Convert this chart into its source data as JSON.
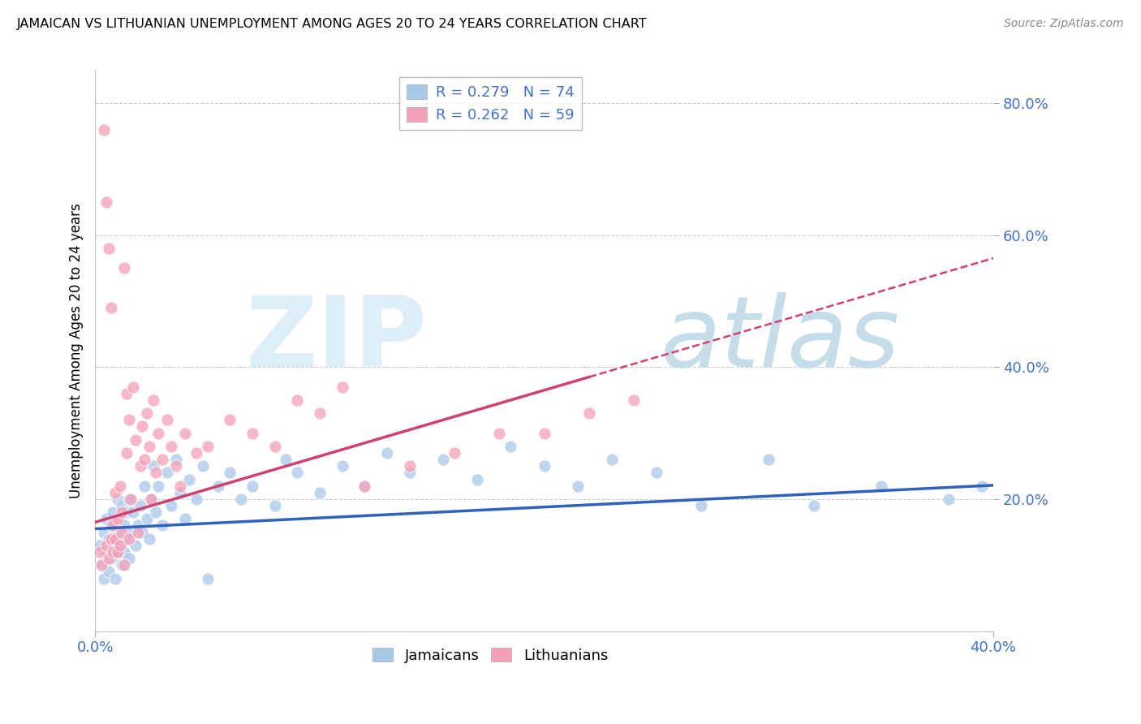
{
  "title": "JAMAICAN VS LITHUANIAN UNEMPLOYMENT AMONG AGES 20 TO 24 YEARS CORRELATION CHART",
  "source": "Source: ZipAtlas.com",
  "ylabel_text": "Unemployment Among Ages 20 to 24 years",
  "legend_entry1": "R = 0.279   N = 74",
  "legend_entry2": "R = 0.262   N = 59",
  "jamaicans_color": "#a8c8e8",
  "lithuanians_color": "#f4a0b8",
  "trend_blue": "#3060c0",
  "trend_pink": "#d04070",
  "xlim": [
    0.0,
    0.4
  ],
  "ylim": [
    0.0,
    0.85
  ],
  "ytick_vals": [
    0.2,
    0.4,
    0.6,
    0.8
  ],
  "ytick_labels": [
    "20.0%",
    "40.0%",
    "60.0%",
    "80.0%"
  ],
  "grid_color": "#cccccc",
  "background_color": "#ffffff",
  "watermark_zip_color": "#dde8f0",
  "watermark_atlas_color": "#c8dcea",
  "jamaicans_x": [
    0.002,
    0.003,
    0.004,
    0.004,
    0.005,
    0.005,
    0.006,
    0.006,
    0.007,
    0.007,
    0.008,
    0.008,
    0.009,
    0.009,
    0.01,
    0.01,
    0.011,
    0.011,
    0.012,
    0.012,
    0.013,
    0.013,
    0.014,
    0.014,
    0.015,
    0.015,
    0.016,
    0.017,
    0.018,
    0.019,
    0.02,
    0.021,
    0.022,
    0.023,
    0.024,
    0.025,
    0.026,
    0.027,
    0.028,
    0.03,
    0.032,
    0.034,
    0.036,
    0.038,
    0.04,
    0.042,
    0.045,
    0.048,
    0.05,
    0.055,
    0.06,
    0.065,
    0.07,
    0.08,
    0.085,
    0.09,
    0.1,
    0.11,
    0.12,
    0.13,
    0.14,
    0.155,
    0.17,
    0.185,
    0.2,
    0.215,
    0.23,
    0.25,
    0.27,
    0.3,
    0.32,
    0.35,
    0.38,
    0.395
  ],
  "jamaicans_y": [
    0.13,
    0.1,
    0.15,
    0.08,
    0.12,
    0.17,
    0.14,
    0.09,
    0.16,
    0.11,
    0.14,
    0.18,
    0.12,
    0.08,
    0.15,
    0.2,
    0.13,
    0.17,
    0.1,
    0.19,
    0.16,
    0.12,
    0.18,
    0.14,
    0.2,
    0.11,
    0.15,
    0.18,
    0.13,
    0.16,
    0.19,
    0.15,
    0.22,
    0.17,
    0.14,
    0.2,
    0.25,
    0.18,
    0.22,
    0.16,
    0.24,
    0.19,
    0.26,
    0.21,
    0.17,
    0.23,
    0.2,
    0.25,
    0.08,
    0.22,
    0.24,
    0.2,
    0.22,
    0.19,
    0.26,
    0.24,
    0.21,
    0.25,
    0.22,
    0.27,
    0.24,
    0.26,
    0.23,
    0.28,
    0.25,
    0.22,
    0.26,
    0.24,
    0.19,
    0.26,
    0.19,
    0.22,
    0.2,
    0.22
  ],
  "lithuanians_x": [
    0.002,
    0.003,
    0.004,
    0.005,
    0.005,
    0.006,
    0.006,
    0.007,
    0.007,
    0.008,
    0.008,
    0.009,
    0.009,
    0.01,
    0.01,
    0.011,
    0.011,
    0.012,
    0.012,
    0.013,
    0.013,
    0.014,
    0.014,
    0.015,
    0.015,
    0.016,
    0.017,
    0.018,
    0.019,
    0.02,
    0.021,
    0.022,
    0.023,
    0.024,
    0.025,
    0.026,
    0.027,
    0.028,
    0.03,
    0.032,
    0.034,
    0.036,
    0.038,
    0.04,
    0.045,
    0.05,
    0.06,
    0.07,
    0.08,
    0.09,
    0.1,
    0.11,
    0.12,
    0.14,
    0.16,
    0.18,
    0.2,
    0.22,
    0.24
  ],
  "lithuanians_y": [
    0.12,
    0.1,
    0.76,
    0.13,
    0.65,
    0.11,
    0.58,
    0.14,
    0.49,
    0.16,
    0.12,
    0.21,
    0.14,
    0.17,
    0.12,
    0.13,
    0.22,
    0.18,
    0.15,
    0.55,
    0.1,
    0.36,
    0.27,
    0.32,
    0.14,
    0.2,
    0.37,
    0.29,
    0.15,
    0.25,
    0.31,
    0.26,
    0.33,
    0.28,
    0.2,
    0.35,
    0.24,
    0.3,
    0.26,
    0.32,
    0.28,
    0.25,
    0.22,
    0.3,
    0.27,
    0.28,
    0.32,
    0.3,
    0.28,
    0.35,
    0.33,
    0.37,
    0.22,
    0.25,
    0.27,
    0.3,
    0.3,
    0.33,
    0.35
  ]
}
